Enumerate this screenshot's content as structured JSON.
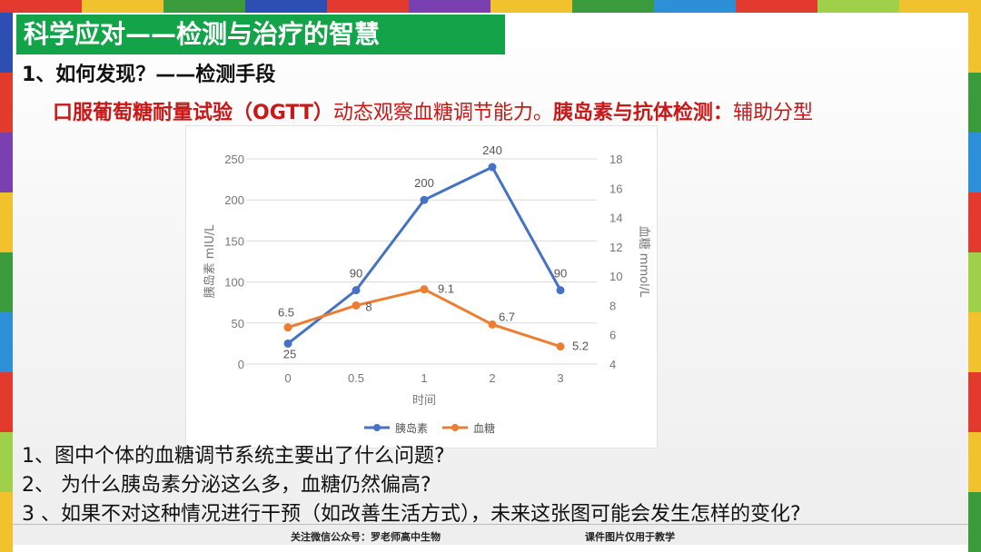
{
  "frame": {
    "colors": [
      "#e23b2e",
      "#f2c12e",
      "#3a9b3a",
      "#2d4fb3",
      "#e23b2e",
      "#7a3fb0",
      "#f2c12e",
      "#3a9b3a",
      "#2d8fd8",
      "#e23b2e",
      "#9fd04a",
      "#f2c12e"
    ]
  },
  "slide": {
    "title": "科学应对——检测与治疗的智慧",
    "subtitle": "1、如何发现？——检测手段",
    "line_bold1": "口服葡萄糖耐量试验（OGTT）",
    "line_normal1": "动态观察血糖调节能力。",
    "line_bold2": "胰岛素与抗体检测：",
    "line_normal2": "辅助分型",
    "questions": [
      "1、图中个体的血糖调节系统主要出了什么问题?",
      "2、 为什么胰岛素分泌这么多，血糖仍然偏高?",
      "3 、如果不对这种情况进行干预（如改善生活方式），未来这张图可能会发生怎样的变化?"
    ],
    "footer_left": "关注微信公众号：罗老师高中生物",
    "footer_right": "课件图片仅用于教学"
  },
  "chart_data": {
    "type": "line",
    "categories": [
      "0",
      "0.5",
      "1",
      "2",
      "3"
    ],
    "xlabel": "时间",
    "ylabel_left": "胰岛素 mIU/L",
    "ylabel_right": "血糖 mmol/L",
    "ylim_left": [
      0,
      250
    ],
    "yticks_left": [
      0,
      50,
      100,
      150,
      200,
      250
    ],
    "ylim_right": [
      4,
      18
    ],
    "yticks_right": [
      4,
      6,
      8,
      10,
      12,
      14,
      16,
      18
    ],
    "series": [
      {
        "name": "胰岛素",
        "axis": "left",
        "color": "#4472c4",
        "values": [
          25,
          90,
          200,
          240,
          90
        ],
        "labels": [
          "25",
          "90",
          "200",
          "240",
          "90"
        ]
      },
      {
        "name": "血糖",
        "axis": "right",
        "color": "#ed7d31",
        "values": [
          6.5,
          8,
          9.1,
          6.7,
          5.2
        ],
        "labels": [
          "6.5",
          "8",
          "9.1",
          "6.7",
          "5.2"
        ]
      }
    ],
    "grid": true,
    "legend": "bottom"
  }
}
